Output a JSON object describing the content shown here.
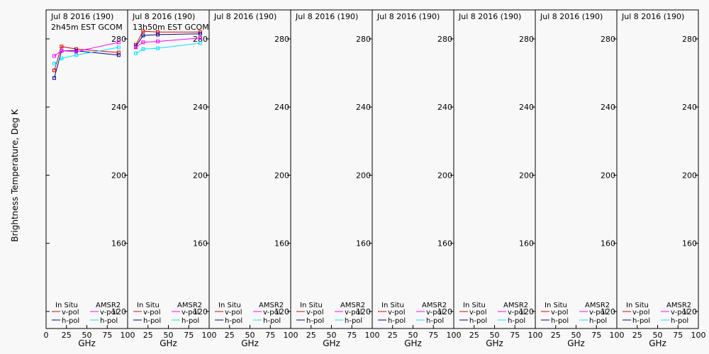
{
  "figure": {
    "ylabel": "Brightness Temperature, Deg K",
    "xlabel": "GHz",
    "x_ticks": [
      "0",
      "25",
      "50",
      "75",
      "100"
    ],
    "y_ticks": [
      "120",
      "160",
      "200",
      "240",
      "280"
    ],
    "legend": {
      "insitu_header": "In Situ",
      "amsr_header": "AMSR2",
      "v_label": "v-pol",
      "h_label": "h-pol"
    },
    "colors": {
      "insitu_v": "#e00000",
      "insitu_h": "#00008b",
      "amsr_v": "#ff00ff",
      "amsr_h": "#00e5ff",
      "background": "#f8f8f8"
    }
  },
  "chart_data": [
    {
      "type": "line",
      "title_line1": "Jul 8 2016 (190)",
      "title_line2": "2h45m EST GCOM",
      "xlim": [
        0,
        100
      ],
      "ylim": [
        110,
        297
      ],
      "series": [
        {
          "name": "In Situ v-pol",
          "x": [
            10,
            19,
            37,
            89
          ],
          "y": [
            261.5,
            275.5,
            274,
            272
          ]
        },
        {
          "name": "In Situ h-pol",
          "x": [
            10,
            19,
            37,
            89
          ],
          "y": [
            257,
            273,
            273,
            270.5
          ]
        },
        {
          "name": "AMSR2 v-pol",
          "x": [
            10,
            19,
            37,
            89
          ],
          "y": [
            270,
            273,
            272.5,
            278
          ]
        },
        {
          "name": "AMSR2 h-pol",
          "x": [
            10,
            19,
            37,
            89
          ],
          "y": [
            265.5,
            268.5,
            270.5,
            275
          ]
        }
      ]
    },
    {
      "type": "line",
      "title_line1": "Jul 8 2016 (190)",
      "title_line2": "13h50m EST GCOM",
      "xlim": [
        0,
        100
      ],
      "ylim": [
        110,
        297
      ],
      "series": [
        {
          "name": "In Situ v-pol",
          "x": [
            10,
            19,
            37,
            89
          ],
          "y": [
            276.5,
            284.5,
            284,
            284
          ]
        },
        {
          "name": "In Situ h-pol",
          "x": [
            10,
            19,
            37,
            89
          ],
          "y": [
            275.5,
            282,
            282.5,
            283
          ]
        },
        {
          "name": "AMSR2 v-pol",
          "x": [
            10,
            19,
            37,
            89
          ],
          "y": [
            275,
            278,
            278.5,
            280.5
          ]
        },
        {
          "name": "AMSR2 h-pol",
          "x": [
            10,
            19,
            37,
            89
          ],
          "y": [
            271.5,
            274,
            274.5,
            277.5
          ]
        }
      ]
    },
    {
      "type": "line",
      "title_line1": "Jul 8 2016 (190)",
      "title_line2": "",
      "xlim": [
        0,
        100
      ],
      "ylim": [
        110,
        297
      ],
      "series": []
    },
    {
      "type": "line",
      "title_line1": "Jul 8 2016 (190)",
      "title_line2": "",
      "xlim": [
        0,
        100
      ],
      "ylim": [
        110,
        297
      ],
      "series": []
    },
    {
      "type": "line",
      "title_line1": "Jul 8 2016 (190)",
      "title_line2": "",
      "xlim": [
        0,
        100
      ],
      "ylim": [
        110,
        297
      ],
      "series": []
    },
    {
      "type": "line",
      "title_line1": "Jul 8 2016 (190)",
      "title_line2": "",
      "xlim": [
        0,
        100
      ],
      "ylim": [
        110,
        297
      ],
      "series": []
    },
    {
      "type": "line",
      "title_line1": "Jul 8 2016 (190)",
      "title_line2": "",
      "xlim": [
        0,
        100
      ],
      "ylim": [
        110,
        297
      ],
      "series": []
    },
    {
      "type": "line",
      "title_line1": "Jul 8 2016 (190)",
      "title_line2": "",
      "xlim": [
        0,
        100
      ],
      "ylim": [
        110,
        297
      ],
      "series": []
    }
  ]
}
